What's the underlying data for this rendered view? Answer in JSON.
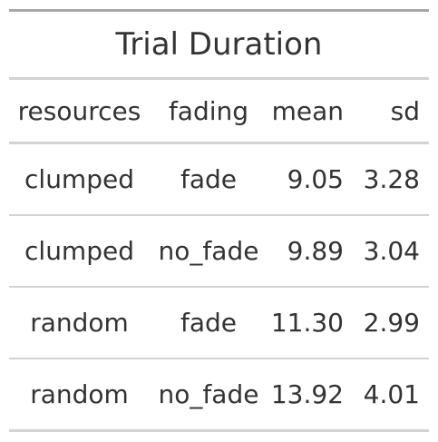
{
  "table": {
    "title": "Trial Duration",
    "columns": [
      "resources",
      "fading",
      "mean",
      "sd"
    ],
    "rows": [
      {
        "resources": "clumped",
        "fading": "fade",
        "mean": "9.05",
        "sd": "3.28"
      },
      {
        "resources": "clumped",
        "fading": "no_fade",
        "mean": "9.89",
        "sd": "3.04"
      },
      {
        "resources": "random",
        "fading": "fade",
        "mean": "11.30",
        "sd": "2.99"
      },
      {
        "resources": "random",
        "fading": "no_fade",
        "mean": "13.92",
        "sd": "4.01"
      }
    ]
  }
}
